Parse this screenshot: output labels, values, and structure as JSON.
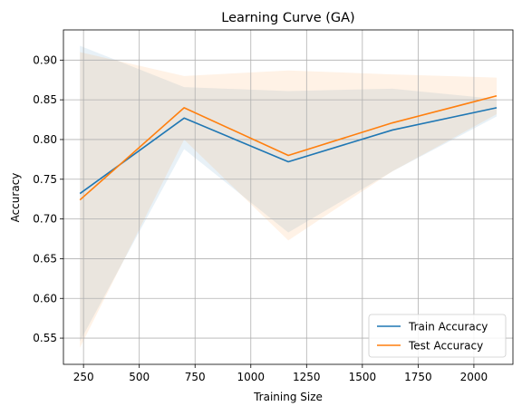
{
  "chart_data": {
    "type": "line",
    "title": "Learning Curve (GA)",
    "xlabel": "Training Size",
    "ylabel": "Accuracy",
    "xlim": [
      160,
      2175
    ],
    "ylim": [
      0.517,
      0.938
    ],
    "xticks": [
      250,
      500,
      750,
      1000,
      1250,
      1500,
      1750,
      2000
    ],
    "yticks": [
      0.55,
      0.6,
      0.65,
      0.7,
      0.75,
      0.8,
      0.85,
      0.9
    ],
    "ytick_labels": [
      "0.55",
      "0.60",
      "0.65",
      "0.70",
      "0.75",
      "0.80",
      "0.85",
      "0.90"
    ],
    "grid": true,
    "legend_position": "lower-right",
    "x": [
      234,
      701,
      1168,
      1635,
      2102
    ],
    "series": [
      {
        "name": "Train Accuracy",
        "color": "#1f77b4",
        "values": [
          0.732,
          0.827,
          0.772,
          0.812,
          0.84
        ],
        "band_upper": [
          0.918,
          0.866,
          0.861,
          0.864,
          0.851
        ],
        "band_lower": [
          0.546,
          0.788,
          0.683,
          0.76,
          0.829
        ]
      },
      {
        "name": "Test Accuracy",
        "color": "#ff7f0e",
        "values": [
          0.724,
          0.84,
          0.78,
          0.821,
          0.855
        ],
        "band_upper": [
          0.91,
          0.88,
          0.887,
          0.882,
          0.878
        ],
        "band_lower": [
          0.538,
          0.8,
          0.673,
          0.76,
          0.832
        ]
      }
    ]
  }
}
